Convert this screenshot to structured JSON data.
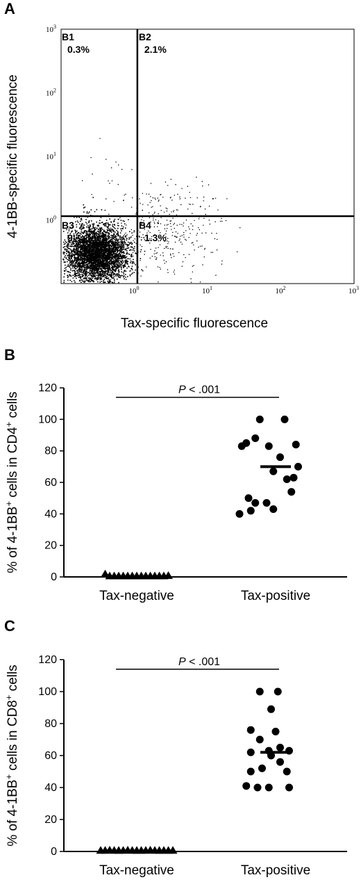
{
  "chart_data": [
    {
      "panel": "A",
      "type": "scatter",
      "xlabel": "Tax-specific fluorescence",
      "ylabel": "4-1BB-specific fluorescence",
      "scale": "log",
      "xlim": [
        0.1,
        1000
      ],
      "ylim": [
        0.1,
        1000
      ],
      "x_ticks": [
        {
          "base": "10",
          "exp": "0"
        },
        {
          "base": "10",
          "exp": "1"
        },
        {
          "base": "10",
          "exp": "2"
        },
        {
          "base": "10",
          "exp": "3"
        }
      ],
      "y_ticks": [
        {
          "base": "10",
          "exp": "0"
        },
        {
          "base": "10",
          "exp": "1"
        },
        {
          "base": "10",
          "exp": "2"
        },
        {
          "base": "10",
          "exp": "3"
        }
      ],
      "gates": {
        "x": 1.1,
        "y": 1.15
      },
      "quadrants": [
        {
          "name": "B1",
          "percent": "0.3%"
        },
        {
          "name": "B2",
          "percent": "2.1%"
        },
        {
          "name": "B3",
          "percent": "9"
        },
        {
          "name": "B4",
          "percent": "1.3%"
        }
      ]
    },
    {
      "panel": "B",
      "type": "scatter",
      "ylabel_parts": {
        "pre": "% of 4-1BB",
        "sup1": "+",
        "mid": " cells in CD4",
        "sup2": "+",
        "post": " cells"
      },
      "ylim": [
        0,
        120
      ],
      "yticks": [
        "0",
        "20",
        "40",
        "60",
        "80",
        "100",
        "120"
      ],
      "categories": [
        "Tax-negative",
        "Tax-positive"
      ],
      "pvalue": {
        "p": "P",
        "rest": " < .001"
      },
      "series": [
        {
          "category": "Tax-negative",
          "marker": "triangle",
          "points": [
            [
              -0.7,
              1.5
            ],
            [
              -0.6,
              0.3
            ],
            [
              -0.5,
              0.3
            ],
            [
              -0.4,
              0.3
            ],
            [
              -0.3,
              0.3
            ],
            [
              -0.2,
              0.3
            ],
            [
              -0.1,
              0.3
            ],
            [
              0.0,
              0.3
            ],
            [
              0.1,
              0.3
            ],
            [
              0.2,
              0.3
            ],
            [
              0.3,
              0.3
            ],
            [
              0.4,
              0.3
            ],
            [
              0.5,
              0.3
            ],
            [
              0.6,
              0.3
            ],
            [
              0.7,
              0.5
            ]
          ]
        },
        {
          "category": "Tax-positive",
          "marker": "circle",
          "points": [
            [
              -0.35,
              100
            ],
            [
              0.2,
              100
            ],
            [
              -0.75,
              83
            ],
            [
              -0.65,
              85
            ],
            [
              -0.45,
              88
            ],
            [
              -0.15,
              83
            ],
            [
              0.1,
              76
            ],
            [
              0.45,
              84
            ],
            [
              -0.05,
              67
            ],
            [
              0.25,
              62
            ],
            [
              0.5,
              70
            ],
            [
              0.4,
              63
            ],
            [
              0.35,
              54
            ],
            [
              -0.6,
              50
            ],
            [
              -0.45,
              47
            ],
            [
              -0.2,
              47
            ],
            [
              -0.8,
              40
            ],
            [
              -0.55,
              42
            ],
            [
              -0.05,
              43
            ]
          ],
          "median": 70
        }
      ]
    },
    {
      "panel": "C",
      "type": "scatter",
      "ylabel_parts": {
        "pre": "% of 4-1BB",
        "sup1": "+",
        "mid": " cells in CD8",
        "sup2": "+",
        "post": " cells"
      },
      "ylim": [
        0,
        120
      ],
      "yticks": [
        "0",
        "20",
        "40",
        "60",
        "80",
        "100",
        "120"
      ],
      "categories": [
        "Tax-negative",
        "Tax-positive"
      ],
      "pvalue": {
        "p": "P",
        "rest": " < .001"
      },
      "series": [
        {
          "category": "Tax-negative",
          "marker": "triangle",
          "points": [
            [
              -0.8,
              0.3
            ],
            [
              -0.7,
              0.3
            ],
            [
              -0.6,
              0.5
            ],
            [
              -0.5,
              0.3
            ],
            [
              -0.4,
              0.3
            ],
            [
              -0.3,
              0.3
            ],
            [
              -0.2,
              0.5
            ],
            [
              -0.1,
              0.3
            ],
            [
              0.0,
              0.3
            ],
            [
              0.1,
              0.3
            ],
            [
              0.2,
              0.3
            ],
            [
              0.3,
              0.5
            ],
            [
              0.4,
              0.3
            ],
            [
              0.5,
              0.3
            ],
            [
              0.6,
              0.3
            ],
            [
              0.7,
              0.3
            ],
            [
              0.8,
              0.3
            ]
          ]
        },
        {
          "category": "Tax-positive",
          "marker": "circle",
          "points": [
            [
              -0.35,
              100
            ],
            [
              0.05,
              100
            ],
            [
              -0.1,
              89
            ],
            [
              -0.55,
              76
            ],
            [
              0.0,
              75
            ],
            [
              -0.35,
              70
            ],
            [
              -0.55,
              62
            ],
            [
              -0.15,
              63
            ],
            [
              0.3,
              63
            ],
            [
              0.1,
              65
            ],
            [
              -0.1,
              60
            ],
            [
              0.1,
              56
            ],
            [
              -0.55,
              50
            ],
            [
              -0.3,
              52
            ],
            [
              0.25,
              50
            ],
            [
              -0.65,
              41
            ],
            [
              -0.4,
              40
            ],
            [
              -0.15,
              40
            ],
            [
              0.3,
              40
            ]
          ],
          "median": 62
        }
      ]
    }
  ]
}
